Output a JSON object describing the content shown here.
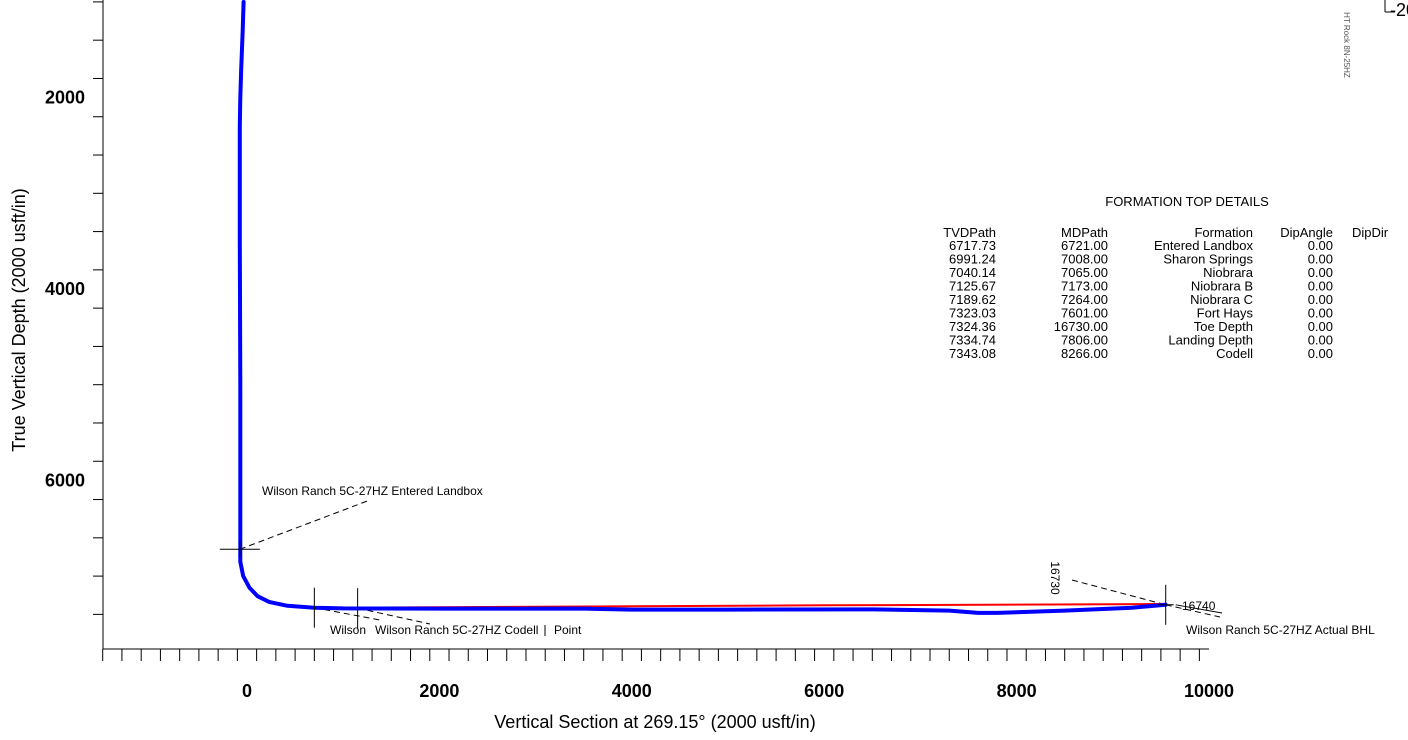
{
  "chart_data": {
    "type": "line",
    "xlabel": "Vertical Section at 269.15° (2000 usft/in)",
    "ylabel": "True Vertical Depth (2000 usft/in)",
    "xlim": [
      -1500,
      10000
    ],
    "ylim": [
      7900,
      1000
    ],
    "y_inverted": true,
    "x_ticks": [
      0,
      2000,
      4000,
      6000,
      8000,
      10000
    ],
    "y_ticks": [
      2000,
      4000,
      6000
    ],
    "x_minor_step": 200,
    "y_minor_step": 400,
    "grid": false,
    "series": [
      {
        "color": "#ff0000",
        "points": [
          [
            -45,
            1000
          ],
          [
            -50,
            1300
          ],
          [
            -65,
            1700
          ],
          [
            -75,
            2000
          ],
          [
            -80,
            2300
          ],
          [
            -80,
            3500
          ],
          [
            -75,
            5000
          ],
          [
            -75,
            6500
          ],
          [
            -75,
            6850
          ],
          [
            -45,
            7000
          ],
          [
            20,
            7120
          ],
          [
            100,
            7200
          ],
          [
            220,
            7260
          ],
          [
            400,
            7300
          ],
          [
            700,
            7325
          ],
          [
            1000,
            7330
          ],
          [
            3000,
            7320
          ],
          [
            6000,
            7305
          ],
          [
            9000,
            7295
          ],
          [
            9550,
            7290
          ]
        ]
      },
      {
        "color": "#0000ff",
        "points": [
          [
            -35,
            1000
          ],
          [
            -45,
            1300
          ],
          [
            -60,
            1700
          ],
          [
            -70,
            2000
          ],
          [
            -75,
            2300
          ],
          [
            -75,
            3500
          ],
          [
            -70,
            5000
          ],
          [
            -70,
            6500
          ],
          [
            -70,
            6850
          ],
          [
            -40,
            7000
          ],
          [
            25,
            7120
          ],
          [
            110,
            7210
          ],
          [
            230,
            7270
          ],
          [
            420,
            7310
          ],
          [
            700,
            7330
          ],
          [
            1000,
            7338
          ],
          [
            2000,
            7340
          ],
          [
            3500,
            7340
          ],
          [
            4000,
            7350
          ],
          [
            5000,
            7350
          ],
          [
            6500,
            7348
          ],
          [
            7300,
            7360
          ],
          [
            7600,
            7385
          ],
          [
            7800,
            7385
          ],
          [
            8500,
            7360
          ],
          [
            9200,
            7330
          ],
          [
            9550,
            7300
          ]
        ]
      }
    ],
    "markers": [
      {
        "x": -75,
        "y": 6720
      },
      {
        "x": 700,
        "y": 7330
      },
      {
        "x": 1150,
        "y": 7335
      },
      {
        "x": 9550,
        "y": 7300
      }
    ],
    "annotations": [
      {
        "text": "Wilson Ranch 5C-27HZ Entered Landbox"
      },
      {
        "text": "Wilson"
      },
      {
        "text": "Wilson Ranch 5C-27HZ Codell"
      },
      {
        "text": "Point"
      },
      {
        "text": "16730"
      },
      {
        "text": "16740"
      },
      {
        "text": "Wilson Ranch 5C-27HZ Actual BHL"
      }
    ],
    "corner_fragment": "-20",
    "rotated_fragment": "HT Rock 8N-25HZ"
  },
  "formation_table": {
    "title": "FORMATION TOP DETAILS",
    "headers": [
      "TVDPath",
      "MDPath",
      "Formation",
      "DipAngle",
      "DipDir"
    ],
    "rows": [
      [
        "6717.73",
        "6721.00",
        "Entered Landbox",
        "0.00",
        ""
      ],
      [
        "6991.24",
        "7008.00",
        "Sharon Springs",
        "0.00",
        ""
      ],
      [
        "7040.14",
        "7065.00",
        "Niobrara",
        "0.00",
        ""
      ],
      [
        "7125.67",
        "7173.00",
        "Niobrara B",
        "0.00",
        ""
      ],
      [
        "7189.62",
        "7264.00",
        "Niobrara C",
        "0.00",
        ""
      ],
      [
        "7323.03",
        "7601.00",
        "Fort Hays",
        "0.00",
        ""
      ],
      [
        "7324.36",
        "16730.00",
        "Toe Depth",
        "0.00",
        ""
      ],
      [
        "7334.74",
        "7806.00",
        "Landing Depth",
        "0.00",
        ""
      ],
      [
        "7343.08",
        "8266.00",
        "Codell",
        "0.00",
        ""
      ]
    ]
  }
}
